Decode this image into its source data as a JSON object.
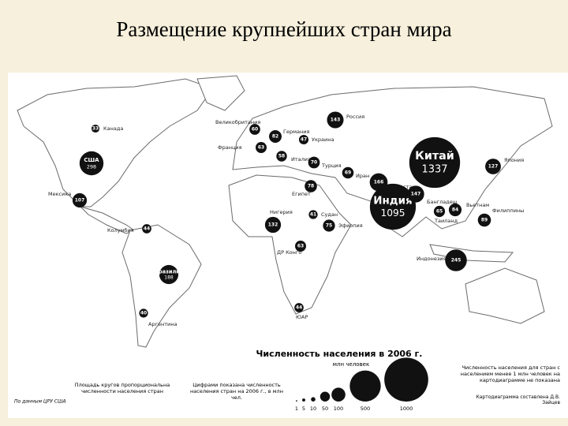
{
  "title": "Размещение крупнейших стран мира",
  "map": {
    "bubbles": [
      {
        "name": "Канада",
        "value": 33
      },
      {
        "name": "США",
        "value": 298
      },
      {
        "name": "Мексика",
        "value": 107
      },
      {
        "name": "Колумбия",
        "value": 44
      },
      {
        "name": "Бразилия",
        "value": 188
      },
      {
        "name": "Аргентина",
        "value": 40
      },
      {
        "name": "Россия",
        "value": 143
      },
      {
        "name": "Великобритания",
        "value": 60
      },
      {
        "name": "Франция",
        "value": 63
      },
      {
        "name": "Германия",
        "value": 82
      },
      {
        "name": "Италия",
        "value": 58
      },
      {
        "name": "Украина",
        "value": 47
      },
      {
        "name": "Турция",
        "value": 70
      },
      {
        "name": "Иран",
        "value": 69
      },
      {
        "name": "Египет",
        "value": 78
      },
      {
        "name": "Судан",
        "value": 41
      },
      {
        "name": "Нигерия",
        "value": 132
      },
      {
        "name": "Эфиопия",
        "value": 75
      },
      {
        "name": "ДР Конго",
        "value": 63
      },
      {
        "name": "ЮАР",
        "value": 44
      },
      {
        "name": "Пакистан",
        "value": 166
      },
      {
        "name": "Индия",
        "value": 1095
      },
      {
        "name": "Бангладеш",
        "value": 147
      },
      {
        "name": "Китай",
        "value": 1337
      },
      {
        "name": "Япония",
        "value": 127
      },
      {
        "name": "Таиланд",
        "value": 65
      },
      {
        "name": "Вьетнам",
        "value": 84
      },
      {
        "name": "Филиппины",
        "value": 89
      },
      {
        "name": "Индонезия",
        "value": 245
      }
    ]
  },
  "legend": {
    "title": "Численность населения в 2006 г.",
    "unit": "млн человек",
    "sizes": [
      1,
      5,
      10,
      50,
      100,
      500,
      1000
    ]
  },
  "notes": {
    "area": "Площадь кругов пропорциональна численности населения стран",
    "figures": "Цифрами показана численность населения стран на 2006 г., в млн чел.",
    "small": "Численность населения для стран с населением менее 1 млн человек на картодиаграмме не показана",
    "source": "По данным ЦРУ США",
    "author": "Картодиаграмма составлена Д.В. Зайцев"
  }
}
